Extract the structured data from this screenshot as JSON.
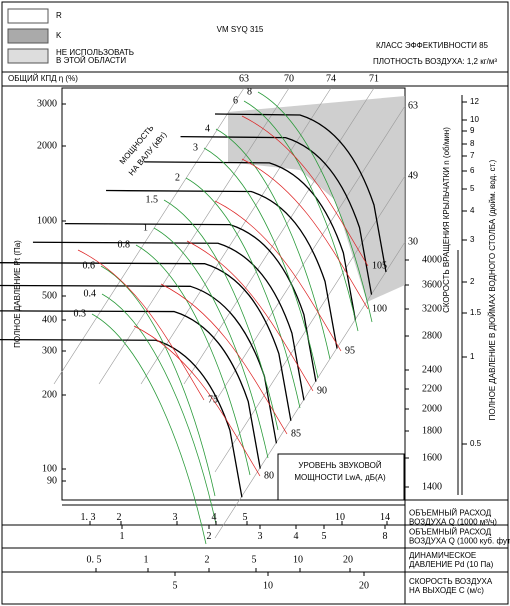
{
  "legend": {
    "r": "R",
    "k": "K",
    "no_use": [
      "НЕ ИСПОЛЬЗОВАТЬ",
      "В ЭТОЙ ОБЛАСТИ"
    ]
  },
  "title": "VM SYQ 315",
  "efficiency_class": "КЛАСС ЭФФЕКТИВНОСТИ 85",
  "air_density": "ПЛОТНОСТЬ ВОЗДУХА: 1,2 кг/м³",
  "efficiency_label": "ОБЩИЙ КПД η (%)",
  "efficiency_top": [
    "63",
    "70",
    "74",
    "71"
  ],
  "efficiency_right": [
    "63",
    "49",
    "30"
  ],
  "pressure_axis": {
    "title": "ПОЛНОЕ ДАВЛЕНИЕ Pt (Па)",
    "ticks": [
      "3000",
      "2000",
      "1000",
      "500",
      "400",
      "300",
      "200",
      "100",
      "90"
    ]
  },
  "rpm_axis": {
    "title": "СКОРОСТЬ ВРАЩЕНИЯ КРЫЛЬЧАТКИ n (об/мин)",
    "ticks": [
      "4000",
      "3600",
      "3200",
      "2800",
      "2400",
      "2200",
      "2000",
      "1800",
      "1600",
      "1400"
    ]
  },
  "inch_axis": {
    "title": "ПОЛНОЕ ДАВЛЕНИЕ В ДЮЙМАХ ВОДНОГО СТОЛБА (дюйм. вод. ст.)",
    "ticks": [
      "12",
      "10",
      "9",
      "8",
      "7",
      "6",
      "5",
      "4",
      "3",
      "2",
      "1.5",
      "1",
      "0.5"
    ]
  },
  "power": {
    "title": [
      "МОЩНОСТЬ",
      "НА ВАЛУ (кВт)"
    ],
    "labels": [
      "8",
      "6",
      "4",
      "3",
      "2",
      "1.5",
      "1",
      "0.8",
      "0.6",
      "0.4",
      "0.3"
    ]
  },
  "noise": {
    "title": [
      "УРОВЕНЬ ЗВУКОВОЙ",
      "МОЩНОСТИ LwA, дБ(А)"
    ],
    "labels": [
      "105",
      "100",
      "95",
      "90",
      "85",
      "80",
      "75"
    ]
  },
  "scales": [
    {
      "label": [
        "ОБЪЕМНЫЙ РАСХОД",
        "ВОЗДУХА Q (1000 м³/ч)"
      ],
      "ticks": [
        "1. 3",
        "2",
        "3",
        "4",
        "5",
        "10",
        "14"
      ]
    },
    {
      "label": [
        "ОБЪЕМНЫЙ РАСХОД",
        "ВОЗДУХА Q (1000 куб. фут/мин)"
      ],
      "ticks": [
        "1",
        "2",
        "3",
        "4",
        "5",
        "8"
      ]
    },
    {
      "label": [
        "ДИНАМИЧЕСКОЕ",
        "ДАВЛЕНИЕ Pd (10 Па)"
      ],
      "ticks": [
        "0. 5",
        "1",
        "2",
        "5",
        "10",
        "20"
      ]
    },
    {
      "label": [
        "СКОРОСТЬ ВОЗДУХА",
        "НА ВЫХОДЕ C (м/с)"
      ],
      "ticks": [
        "5",
        "10",
        "20"
      ]
    }
  ]
}
